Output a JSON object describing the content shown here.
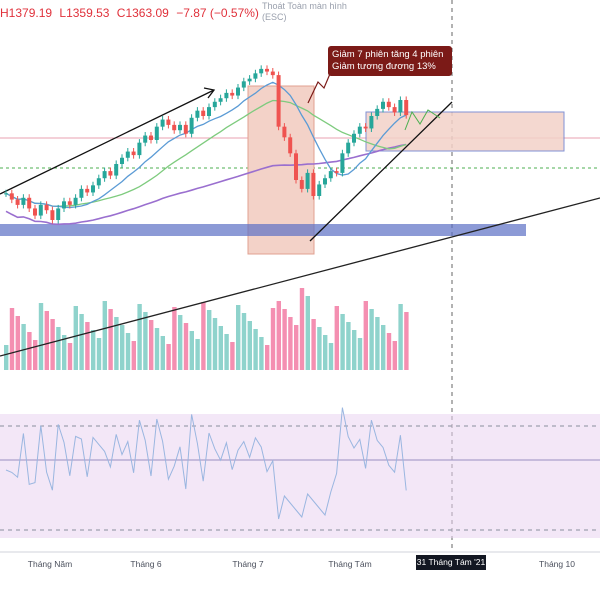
{
  "header": {
    "high": "H1379.19",
    "low": "L1359.53",
    "close": "C1363.09",
    "change": "−7.87 (−0.57%)",
    "esc_line1": "Thoát Toàn màn hình",
    "esc_line2": "(ESC)"
  },
  "annotation": {
    "line1": "Giảm 7 phiên tăng 4 phiên",
    "line2": "Giảm tương đương 13%"
  },
  "x_axis": {
    "labels": [
      "Tháng Năm",
      "Tháng 6",
      "Tháng 7",
      "Tháng Tám",
      "Tháng 10"
    ],
    "cursor_label": "31 Tháng Tám '21"
  },
  "colors": {
    "up": "#26a69a",
    "down": "#ef5350",
    "volume_up": "#8fd3cc",
    "volume_down": "#f48fb1",
    "ma_fast": "#5b9bd5",
    "ma_mid": "#7ecb7e",
    "ma_slow": "#9a6fcf",
    "rsi": "#9ab6e0",
    "zone": "#f3d2c8",
    "support_band": "#5b6fc4"
  },
  "chart_data": {
    "type": "candlestick",
    "note_series": "approximate daily closes read from the chart",
    "closes": [
      1275,
      1268,
      1262,
      1270,
      1258,
      1250,
      1262,
      1256,
      1245,
      1258,
      1266,
      1262,
      1270,
      1280,
      1276,
      1284,
      1292,
      1300,
      1295,
      1308,
      1315,
      1322,
      1318,
      1332,
      1340,
      1335,
      1350,
      1358,
      1352,
      1346,
      1352,
      1342,
      1360,
      1368,
      1362,
      1372,
      1378,
      1382,
      1388,
      1385,
      1394,
      1401,
      1404,
      1410,
      1415,
      1412,
      1408,
      1350,
      1338,
      1320,
      1290,
      1280,
      1298,
      1272,
      1285,
      1292,
      1300,
      1298,
      1320,
      1332,
      1342,
      1350,
      1348,
      1362,
      1370,
      1378,
      1372,
      1366,
      1380,
      1363
    ],
    "volume_colors": "up_down",
    "support_band_level": 1262,
    "rsi_levels": [
      70,
      30
    ]
  }
}
